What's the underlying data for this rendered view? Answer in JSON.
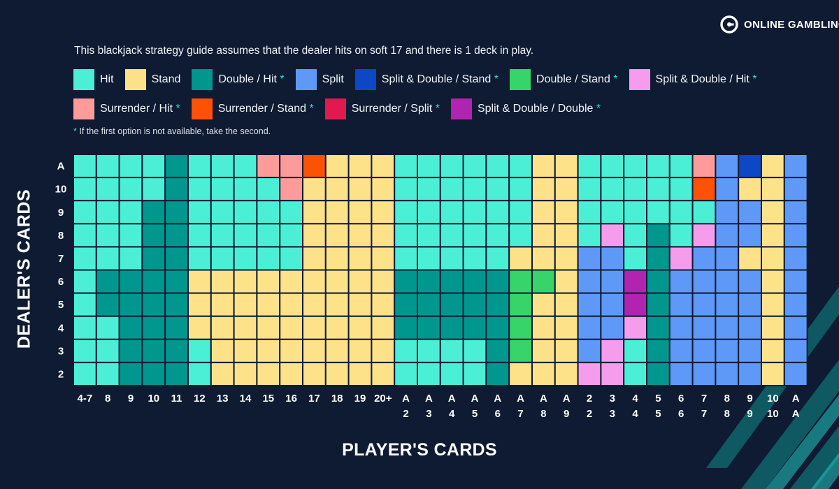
{
  "brand": {
    "name": "ONLINE GAMBLING",
    "logo_icon": "g-circle-logo-icon"
  },
  "intro": "This blackjack strategy guide assumes that the dealer hits on soft 17 and there is 1 deck in play.",
  "legend": [
    {
      "code": "H",
      "label": "Hit",
      "asterisk": false,
      "color": "#4befd6"
    },
    {
      "code": "S",
      "label": "Stand",
      "asterisk": false,
      "color": "#fde28a"
    },
    {
      "code": "DH",
      "label": "Double / Hit",
      "asterisk": true,
      "color": "#00978f"
    },
    {
      "code": "P",
      "label": "Split",
      "asterisk": false,
      "color": "#5f99f8"
    },
    {
      "code": "PDS",
      "label": "Split & Double / Stand",
      "asterisk": true,
      "color": "#0d47c3"
    },
    {
      "code": "DS",
      "label": "Double / Stand",
      "asterisk": true,
      "color": "#37d46a"
    },
    {
      "code": "PDH",
      "label": "Split & Double / Hit",
      "asterisk": true,
      "color": "#f59cec"
    },
    {
      "code": "RH",
      "label": "Surrender / Hit",
      "asterisk": true,
      "color": "#fd9b9b"
    },
    {
      "code": "RS",
      "label": "Surrender / Stand",
      "asterisk": true,
      "color": "#fd5204"
    },
    {
      "code": "RP",
      "label": "Surrender / Split",
      "asterisk": true,
      "color": "#e01a4f"
    },
    {
      "code": "PDD",
      "label": "Split & Double / Double",
      "asterisk": true,
      "color": "#b124b0"
    }
  ],
  "asterisk_symbol": "*",
  "footnote": {
    "symbol": "*",
    "text": "If the first option is not available, take the second."
  },
  "chart_data": {
    "type": "heatmap",
    "xlabel": "PLAYER'S CARDS",
    "ylabel": "DEALER'S CARDS",
    "y_categories": [
      "A",
      "10",
      "9",
      "8",
      "7",
      "6",
      "5",
      "4",
      "3",
      "2"
    ],
    "x_categories": [
      [
        "4-7"
      ],
      [
        "8"
      ],
      [
        "9"
      ],
      [
        "10"
      ],
      [
        "11"
      ],
      [
        "12"
      ],
      [
        "13"
      ],
      [
        "14"
      ],
      [
        "15"
      ],
      [
        "16"
      ],
      [
        "17"
      ],
      [
        "18"
      ],
      [
        "19"
      ],
      [
        "20+"
      ],
      [
        "A",
        "2"
      ],
      [
        "A",
        "3"
      ],
      [
        "A",
        "4"
      ],
      [
        "A",
        "5"
      ],
      [
        "A",
        "6"
      ],
      [
        "A",
        "7"
      ],
      [
        "A",
        "8"
      ],
      [
        "A",
        "9"
      ],
      [
        "2",
        "2"
      ],
      [
        "3",
        "3"
      ],
      [
        "4",
        "4"
      ],
      [
        "5",
        "5"
      ],
      [
        "6",
        "6"
      ],
      [
        "7",
        "7"
      ],
      [
        "8",
        "8"
      ],
      [
        "9",
        "9"
      ],
      [
        "10",
        "10"
      ],
      [
        "A",
        "A"
      ]
    ],
    "values": [
      [
        "H",
        "H",
        "H",
        "H",
        "DH",
        "H",
        "H",
        "H",
        "RH",
        "RH",
        "RS",
        "S",
        "S",
        "S",
        "H",
        "H",
        "H",
        "H",
        "H",
        "H",
        "S",
        "S",
        "H",
        "H",
        "H",
        "H",
        "H",
        "RH",
        "P",
        "PDS",
        "S",
        "P"
      ],
      [
        "H",
        "H",
        "H",
        "H",
        "DH",
        "H",
        "H",
        "H",
        "H",
        "RH",
        "S",
        "S",
        "S",
        "S",
        "H",
        "H",
        "H",
        "H",
        "H",
        "H",
        "S",
        "S",
        "H",
        "H",
        "H",
        "H",
        "H",
        "RS",
        "P",
        "S",
        "S",
        "P"
      ],
      [
        "H",
        "H",
        "H",
        "DH",
        "DH",
        "H",
        "H",
        "H",
        "H",
        "H",
        "S",
        "S",
        "S",
        "S",
        "H",
        "H",
        "H",
        "H",
        "H",
        "H",
        "S",
        "S",
        "H",
        "H",
        "H",
        "H",
        "H",
        "H",
        "P",
        "P",
        "S",
        "P"
      ],
      [
        "H",
        "H",
        "H",
        "DH",
        "DH",
        "H",
        "H",
        "H",
        "H",
        "H",
        "S",
        "S",
        "S",
        "S",
        "H",
        "H",
        "H",
        "H",
        "H",
        "H",
        "S",
        "S",
        "H",
        "PDH",
        "H",
        "DH",
        "H",
        "PDH",
        "P",
        "P",
        "S",
        "P"
      ],
      [
        "H",
        "H",
        "H",
        "DH",
        "DH",
        "H",
        "H",
        "H",
        "H",
        "H",
        "S",
        "S",
        "S",
        "S",
        "H",
        "H",
        "H",
        "H",
        "H",
        "S",
        "S",
        "S",
        "P",
        "P",
        "H",
        "DH",
        "PDH",
        "P",
        "P",
        "S",
        "S",
        "P"
      ],
      [
        "H",
        "DH",
        "DH",
        "DH",
        "DH",
        "S",
        "S",
        "S",
        "S",
        "S",
        "S",
        "S",
        "S",
        "S",
        "DH",
        "DH",
        "DH",
        "DH",
        "DH",
        "DS",
        "DS",
        "S",
        "P",
        "P",
        "PDD",
        "DH",
        "P",
        "P",
        "P",
        "P",
        "S",
        "P"
      ],
      [
        "H",
        "DH",
        "DH",
        "DH",
        "DH",
        "S",
        "S",
        "S",
        "S",
        "S",
        "S",
        "S",
        "S",
        "S",
        "DH",
        "DH",
        "DH",
        "DH",
        "DH",
        "DS",
        "S",
        "S",
        "P",
        "P",
        "PDD",
        "DH",
        "P",
        "P",
        "P",
        "P",
        "S",
        "P"
      ],
      [
        "H",
        "H",
        "DH",
        "DH",
        "DH",
        "S",
        "S",
        "S",
        "S",
        "S",
        "S",
        "S",
        "S",
        "S",
        "DH",
        "DH",
        "DH",
        "DH",
        "DH",
        "DS",
        "S",
        "S",
        "P",
        "P",
        "PDH",
        "DH",
        "P",
        "P",
        "P",
        "P",
        "S",
        "P"
      ],
      [
        "H",
        "H",
        "DH",
        "DH",
        "DH",
        "H",
        "S",
        "S",
        "S",
        "S",
        "S",
        "S",
        "S",
        "S",
        "H",
        "H",
        "H",
        "H",
        "DH",
        "DS",
        "S",
        "S",
        "P",
        "PDH",
        "H",
        "DH",
        "P",
        "P",
        "P",
        "P",
        "S",
        "P"
      ],
      [
        "H",
        "H",
        "DH",
        "DH",
        "DH",
        "H",
        "S",
        "S",
        "S",
        "S",
        "S",
        "S",
        "S",
        "S",
        "H",
        "H",
        "H",
        "H",
        "DH",
        "S",
        "S",
        "S",
        "PDH",
        "PDH",
        "H",
        "DH",
        "P",
        "P",
        "P",
        "P",
        "S",
        "P"
      ]
    ]
  }
}
